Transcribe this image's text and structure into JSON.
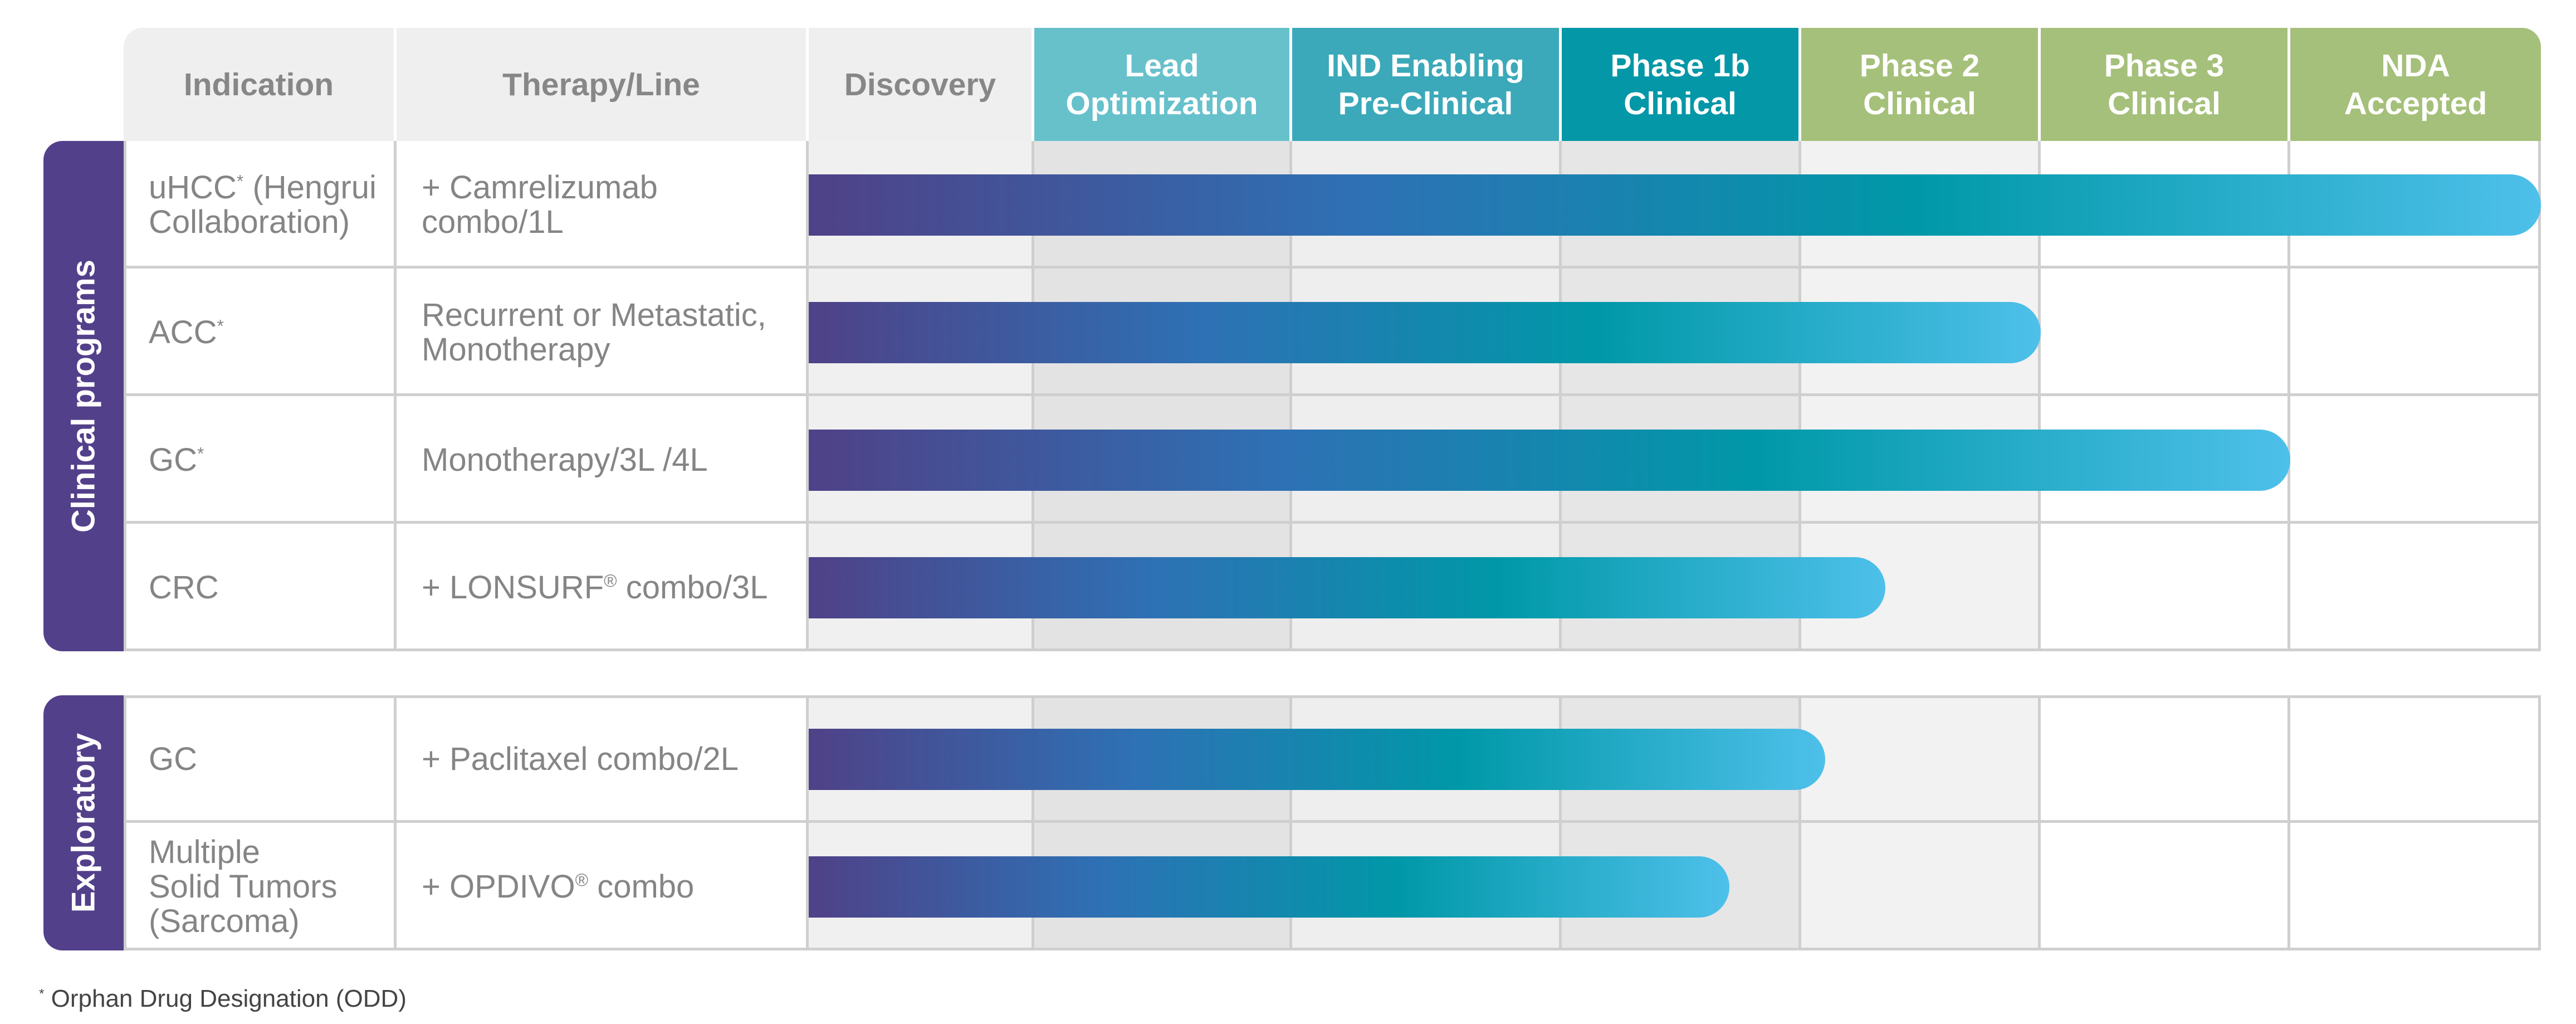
{
  "chart_data": {
    "type": "bar",
    "orientation": "horizontal",
    "columns": [
      {
        "label": "Indication",
        "kind": "label"
      },
      {
        "label": "Therapy/Line",
        "kind": "label"
      },
      {
        "label": "Discovery",
        "kind": "stage"
      },
      {
        "label": "Lead\nOptimization",
        "kind": "stage"
      },
      {
        "label": "IND Enabling\nPre-Clinical",
        "kind": "stage"
      },
      {
        "label": "Phase 1b\nClinical",
        "kind": "stage"
      },
      {
        "label": "Phase 2\nClinical",
        "kind": "stage"
      },
      {
        "label": "Phase 3\nClinical",
        "kind": "stage"
      },
      {
        "label": "NDA\nAccepted",
        "kind": "stage"
      }
    ],
    "header_colors": [
      "#efefef",
      "#efefef",
      "#efefef",
      "#67c1cb",
      "#3ba9b9",
      "#0497a7",
      "#a5c07a",
      "#a5c07a",
      "#a5c07a"
    ],
    "bar_gradient": [
      "#4f4187",
      "#2e71b5",
      "#0098a8",
      "#4ec0ea"
    ],
    "sidebar_color": "#53408a",
    "groups": [
      {
        "name": "Clinical programs",
        "rows": [
          {
            "indication": "uHCC",
            "indication_sup": "*",
            "indication_suffix": " (Hengrui\nCollaboration)",
            "therapy": "+ Camrelizumab\ncombo/1L",
            "therapy_sup": "",
            "therapy_suffix": "",
            "progress": 7.0
          },
          {
            "indication": "ACC",
            "indication_sup": "*",
            "indication_suffix": "",
            "therapy": "Recurrent or Metastatic,\nMonotherapy",
            "therapy_sup": "",
            "therapy_suffix": "",
            "progress": 5.0
          },
          {
            "indication": "GC",
            "indication_sup": "*",
            "indication_suffix": "",
            "therapy": "Monotherapy/3L /4L",
            "therapy_sup": "",
            "therapy_suffix": "",
            "progress": 6.0
          },
          {
            "indication": "CRC",
            "indication_sup": "",
            "indication_suffix": "",
            "therapy": "+ LONSURF",
            "therapy_sup": "®",
            "therapy_suffix": " combo/3L",
            "progress": 4.35
          }
        ]
      },
      {
        "name": "Exploratory",
        "rows": [
          {
            "indication": "GC",
            "indication_sup": "",
            "indication_suffix": "",
            "therapy": "+ Paclitaxel combo/2L",
            "therapy_sup": "",
            "therapy_suffix": "",
            "progress": 4.1
          },
          {
            "indication": "Multiple\nSolid Tumors\n(Sarcoma)",
            "indication_sup": "",
            "indication_suffix": "",
            "therapy": "+ OPDIVO",
            "therapy_sup": "®",
            "therapy_suffix": " combo",
            "progress": 3.7
          }
        ]
      }
    ]
  },
  "footnote": {
    "marker": "*",
    "text": " Orphan Drug Designation (ODD)"
  }
}
